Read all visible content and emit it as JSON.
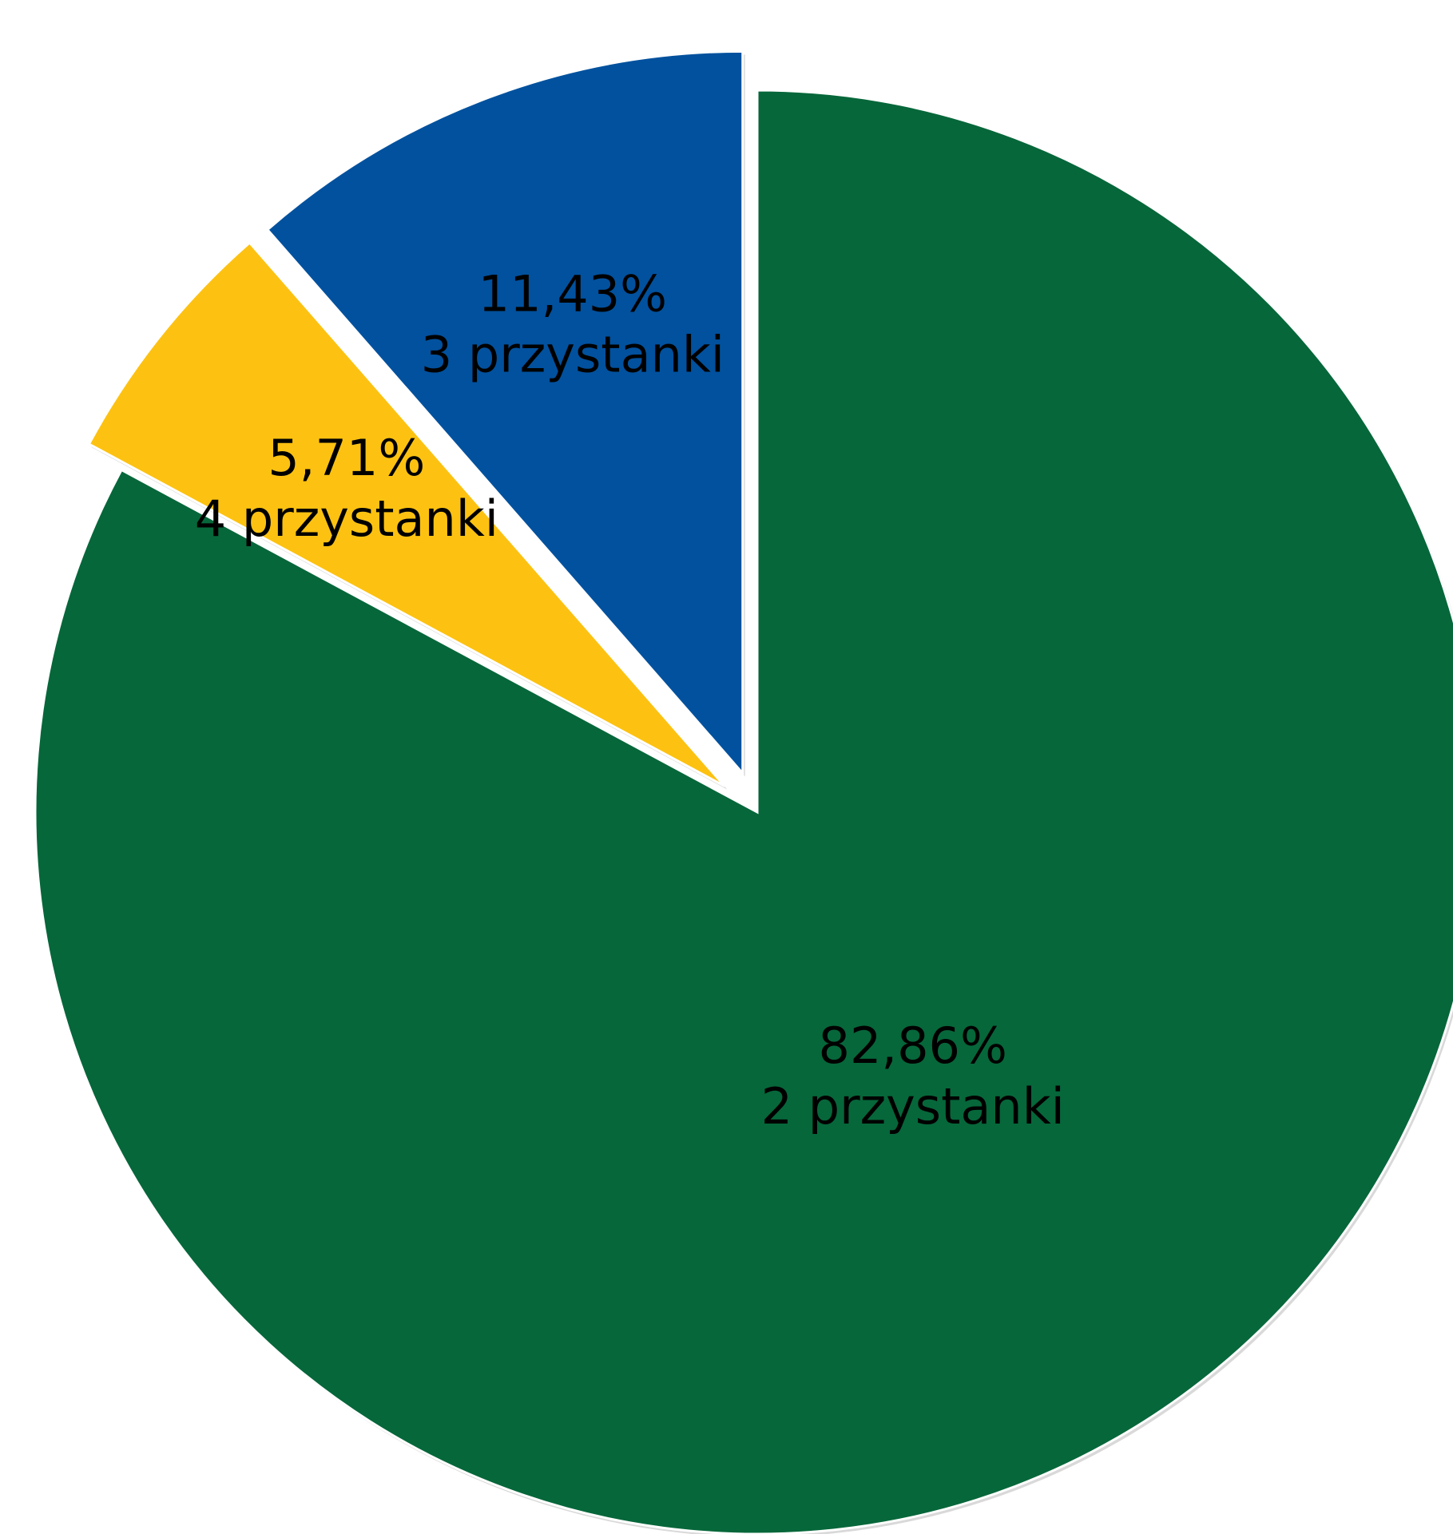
{
  "chart_data": {
    "type": "pie",
    "title": "",
    "start_angle_deg": 0,
    "direction": "clockwise",
    "legend": "none",
    "slices": [
      {
        "key": "2",
        "value": 82.86,
        "percent_label": "82,86%",
        "category_label": "2 przystanki",
        "color": "#06673A",
        "exploded": false
      },
      {
        "key": "4",
        "value": 5.71,
        "percent_label": "5,71%",
        "category_label": "4 przystanki",
        "color": "#FDC211",
        "exploded": true
      },
      {
        "key": "3",
        "value": 11.43,
        "percent_label": "11,43%",
        "category_label": "3 przystanki",
        "color": "#01519E",
        "exploded": true
      }
    ]
  }
}
